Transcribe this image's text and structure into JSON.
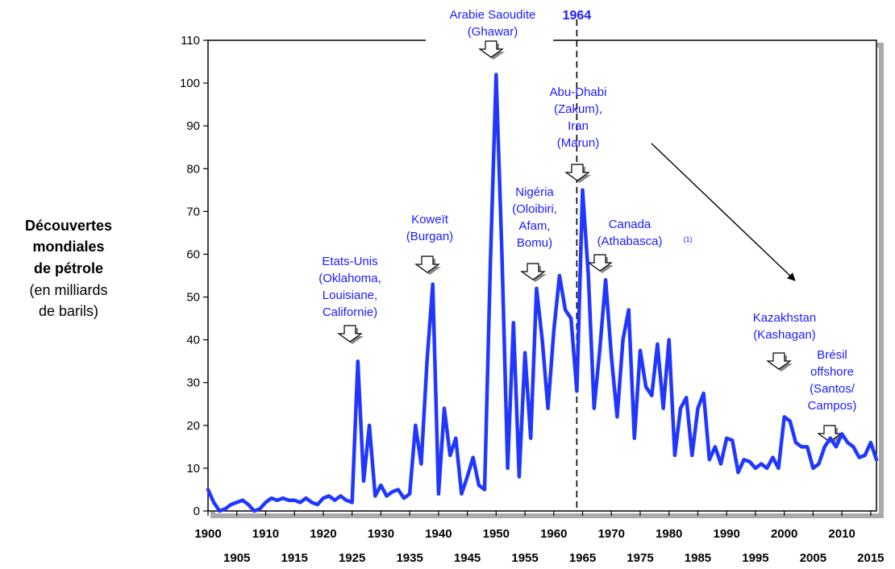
{
  "chart_data": {
    "type": "line",
    "ylabel": {
      "line1": "Découvertes",
      "line2": "mondiales",
      "line3": "de pétrole",
      "line4": "(en milliards",
      "line5": "de barils)"
    },
    "xlim": [
      1900,
      2016
    ],
    "ylim": [
      0,
      110
    ],
    "yticks": [
      "0",
      "10",
      "20",
      "30",
      "40",
      "50",
      "60",
      "70",
      "80",
      "90",
      "100",
      "110"
    ],
    "xticks_top": [
      "1900",
      "1910",
      "1920",
      "1930",
      "1940",
      "1950",
      "1960",
      "1970",
      "1980",
      "1990",
      "2000",
      "2010"
    ],
    "xticks_bottom": [
      "1905",
      "1915",
      "1925",
      "1935",
      "1945",
      "1955",
      "1965",
      "1975",
      "1985",
      "1995",
      "2005",
      "2015"
    ],
    "grid": false,
    "colors": {
      "line": "#1f37ff",
      "annotation": "#1a1aff",
      "axis": "#000000"
    },
    "reference_line": {
      "x": 1964,
      "label": "1964"
    },
    "series": [
      {
        "x": [
          1900,
          1901,
          1902,
          1903,
          1904,
          1905,
          1906,
          1907,
          1908,
          1909,
          1910,
          1911,
          1912,
          1913,
          1914,
          1915,
          1916,
          1917,
          1918,
          1919,
          1920,
          1921,
          1922,
          1923,
          1924,
          1925,
          1926,
          1927,
          1928,
          1929,
          1930,
          1931,
          1932,
          1933,
          1934,
          1935,
          1936,
          1937,
          1938,
          1939,
          1940,
          1941,
          1942,
          1943,
          1944,
          1945,
          1946,
          1947,
          1948,
          1949,
          1950,
          1951,
          1952,
          1953,
          1954,
          1955,
          1956,
          1957,
          1958,
          1959,
          1960,
          1961,
          1962,
          1963,
          1964,
          1965,
          1966,
          1967,
          1968,
          1969,
          1970,
          1971,
          1972,
          1973,
          1974,
          1975,
          1976,
          1977,
          1978,
          1979,
          1980,
          1981,
          1982,
          1983,
          1984,
          1985,
          1986,
          1987,
          1988,
          1989,
          1990,
          1991,
          1992,
          1993,
          1994,
          1995,
          1996,
          1997,
          1998,
          1999,
          2000,
          2001,
          2002,
          2003,
          2004,
          2005,
          2006,
          2007,
          2008,
          2009,
          2010,
          2011,
          2012,
          2013,
          2014,
          2015,
          2016
        ],
        "values": [
          5,
          2,
          0,
          0.5,
          1.5,
          2,
          2.5,
          1.5,
          0,
          0.5,
          2,
          3,
          2.5,
          3,
          2.5,
          2.5,
          2,
          3,
          2,
          1.5,
          3,
          3.5,
          2.5,
          3.5,
          2.5,
          2,
          35,
          7,
          20,
          3.5,
          6,
          3.5,
          4.5,
          5,
          3,
          4,
          20,
          11,
          35,
          53,
          4,
          24,
          13,
          17,
          4,
          8,
          12.5,
          6,
          5,
          58,
          102,
          60,
          10,
          44,
          8,
          37,
          17,
          52,
          40,
          24,
          42,
          55,
          47,
          45,
          28,
          75,
          55,
          24,
          38,
          54,
          36,
          22,
          40,
          47,
          17,
          37.5,
          29,
          27,
          39,
          24,
          40,
          13,
          24,
          26.5,
          13,
          24,
          27.5,
          12,
          15,
          11,
          17,
          16.5,
          9,
          12,
          11.5,
          10,
          11,
          10,
          12.5,
          10,
          22,
          21,
          16,
          15,
          15,
          10,
          11,
          15,
          17,
          15,
          18,
          16,
          15,
          12.5,
          13,
          16,
          12
        ]
      }
    ],
    "annotations": [
      {
        "lines": [
          "Etats-Unis",
          "(Oklahoma,",
          "Louisiane,",
          "Californie)"
        ]
      },
      {
        "lines": [
          "Koweït",
          "(Burgan)"
        ]
      },
      {
        "lines": [
          "Arabie Saoudite",
          "(Ghawar)"
        ]
      },
      {
        "lines": [
          "Nigéria",
          "(Oloibiri,",
          "Afam,",
          "Bomu)"
        ]
      },
      {
        "lines": [
          "Abu-Dhabi",
          "(Zakum),",
          "Iran",
          "(Marun)"
        ]
      },
      {
        "lines": [
          "Canada",
          "(Athabasca)"
        ],
        "superscript": "(1)"
      },
      {
        "lines": [
          "Kazakhstan",
          "(Kashagan)"
        ]
      },
      {
        "lines": [
          "Brésil",
          "offshore",
          "(Santos/",
          "Campos)"
        ]
      }
    ]
  }
}
